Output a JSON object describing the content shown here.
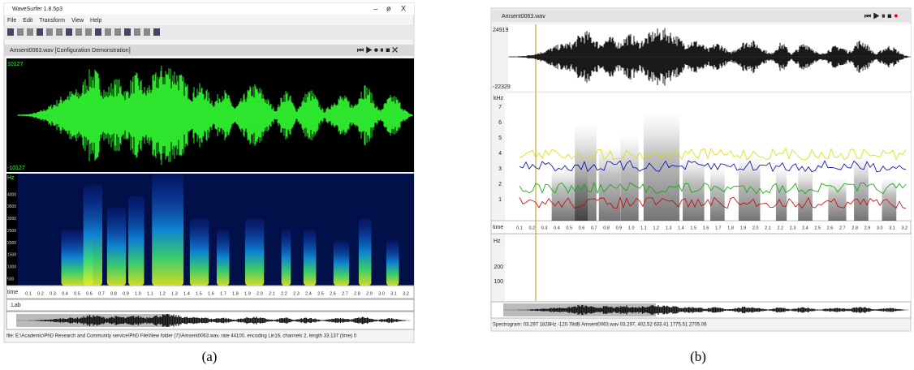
{
  "panel_a": {
    "window_title": "WaveSurfer 1.8.5p3",
    "menu": [
      "File",
      "Edit",
      "Transform",
      "View",
      "Help"
    ],
    "sound_title": "Amsent0063.wav [Configuration Demonstration]",
    "waveform_max": "10127",
    "waveform_min": "-10127",
    "freq_unit": "Hz",
    "freq_ticks": [
      "4000",
      "3500",
      "3000",
      "2500",
      "2000",
      "1500",
      "1000",
      "500"
    ],
    "time_label": "time",
    "time_ticks": [
      "0.1",
      "0.2",
      "0.3",
      "0.4",
      "0.5",
      "0.6",
      "0.7",
      "0.8",
      "0.9",
      "1.0",
      "1.1",
      "1.2",
      "1.3",
      "1.4",
      "1.5",
      "1.6",
      "1.7",
      "1.8",
      "1.9",
      "2.0",
      "2.1",
      "2.2",
      "2.3",
      "2.4",
      "2.5",
      "2.6",
      "2.7",
      "2.8",
      "2.9",
      "3.0",
      "3.1",
      "3.2"
    ],
    "lab_label": ".Lab",
    "status": "file: E:\\Academic\\PhD Research and Community service\\PhD File\\New folder (7)\\Amsent0063.wav, rate 44100, encoding Lin16, channels 2, length 33.137 (time) 0",
    "caption": "(a)"
  },
  "panel_b": {
    "sound_title": "Amsent0063.wav",
    "waveform_max": "24919",
    "waveform_min": "-22329",
    "freq_unit": "kHz",
    "freq_ticks": [
      "7",
      "6",
      "5",
      "4",
      "3",
      "2",
      "1"
    ],
    "time_label": "time",
    "time_ticks": [
      "0.1",
      "0.2",
      "0.3",
      "0.4",
      "0.5",
      "0.6",
      "0.7",
      "0.8",
      "0.9",
      "1.0",
      "1.1",
      "1.2",
      "1.3",
      "1.4",
      "1.5",
      "1.6",
      "1.7",
      "1.8",
      "1.9",
      "2.0",
      "2.1",
      "2.2",
      "2.3",
      "2.4",
      "2.5",
      "2.6",
      "2.7",
      "2.8",
      "2.9",
      "3.0",
      "3.1",
      "3.2"
    ],
    "pitch_unit": "Hz",
    "pitch_ticks": [
      "200",
      "100"
    ],
    "status": "Spectrogram: 03.297 1828Hz -120.78dB Amsent0063.wav 03.297, 402.52 633.41 1775.51 2705.06",
    "caption": "(b)"
  }
}
